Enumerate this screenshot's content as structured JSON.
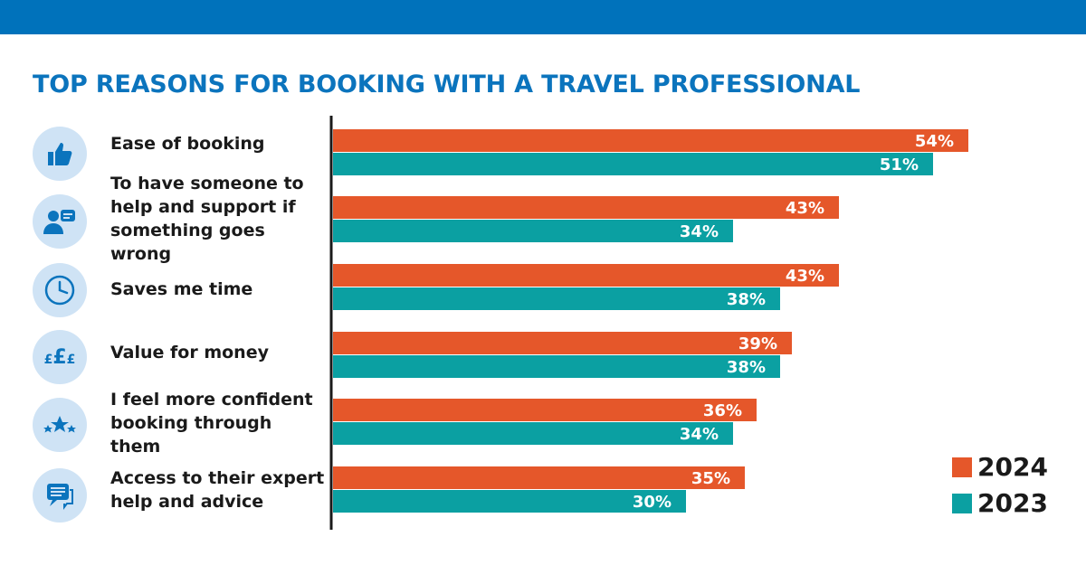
{
  "title": "TOP REASONS FOR BOOKING WITH A TRAVEL PROFESSIONAL",
  "colors": {
    "series_2024": "#e5572a",
    "series_2023": "#0ba0a2",
    "header": "#0072bb",
    "icon_bg": "#cfe3f5",
    "icon_fg": "#0b74bd"
  },
  "icons": [
    "thumbs-up-icon",
    "support-person-chat-icon",
    "clock-icon",
    "pound-coins-icon",
    "stars-icon",
    "speech-bubble-icon"
  ],
  "chart_data": {
    "type": "bar",
    "orientation": "horizontal",
    "categories": [
      "Ease of booking",
      "To have someone to help and support if something goes wrong",
      "Saves me time",
      "Value for money",
      "I feel more confident booking through them",
      "Access to their expert help and advice"
    ],
    "series": [
      {
        "name": "2024",
        "values": [
          54,
          43,
          43,
          39,
          36,
          35
        ]
      },
      {
        "name": "2023",
        "values": [
          51,
          34,
          38,
          38,
          34,
          30
        ]
      }
    ],
    "value_labels": {
      "2024": [
        "54%",
        "43%",
        "43%",
        "39%",
        "36%",
        "35%"
      ],
      "2023": [
        "51%",
        "34%",
        "38%",
        "38%",
        "34%",
        "30%"
      ]
    },
    "unit": "%",
    "grid": false,
    "legend_position": "bottom-right"
  },
  "legend": [
    {
      "label": "2024"
    },
    {
      "label": "2023"
    }
  ]
}
